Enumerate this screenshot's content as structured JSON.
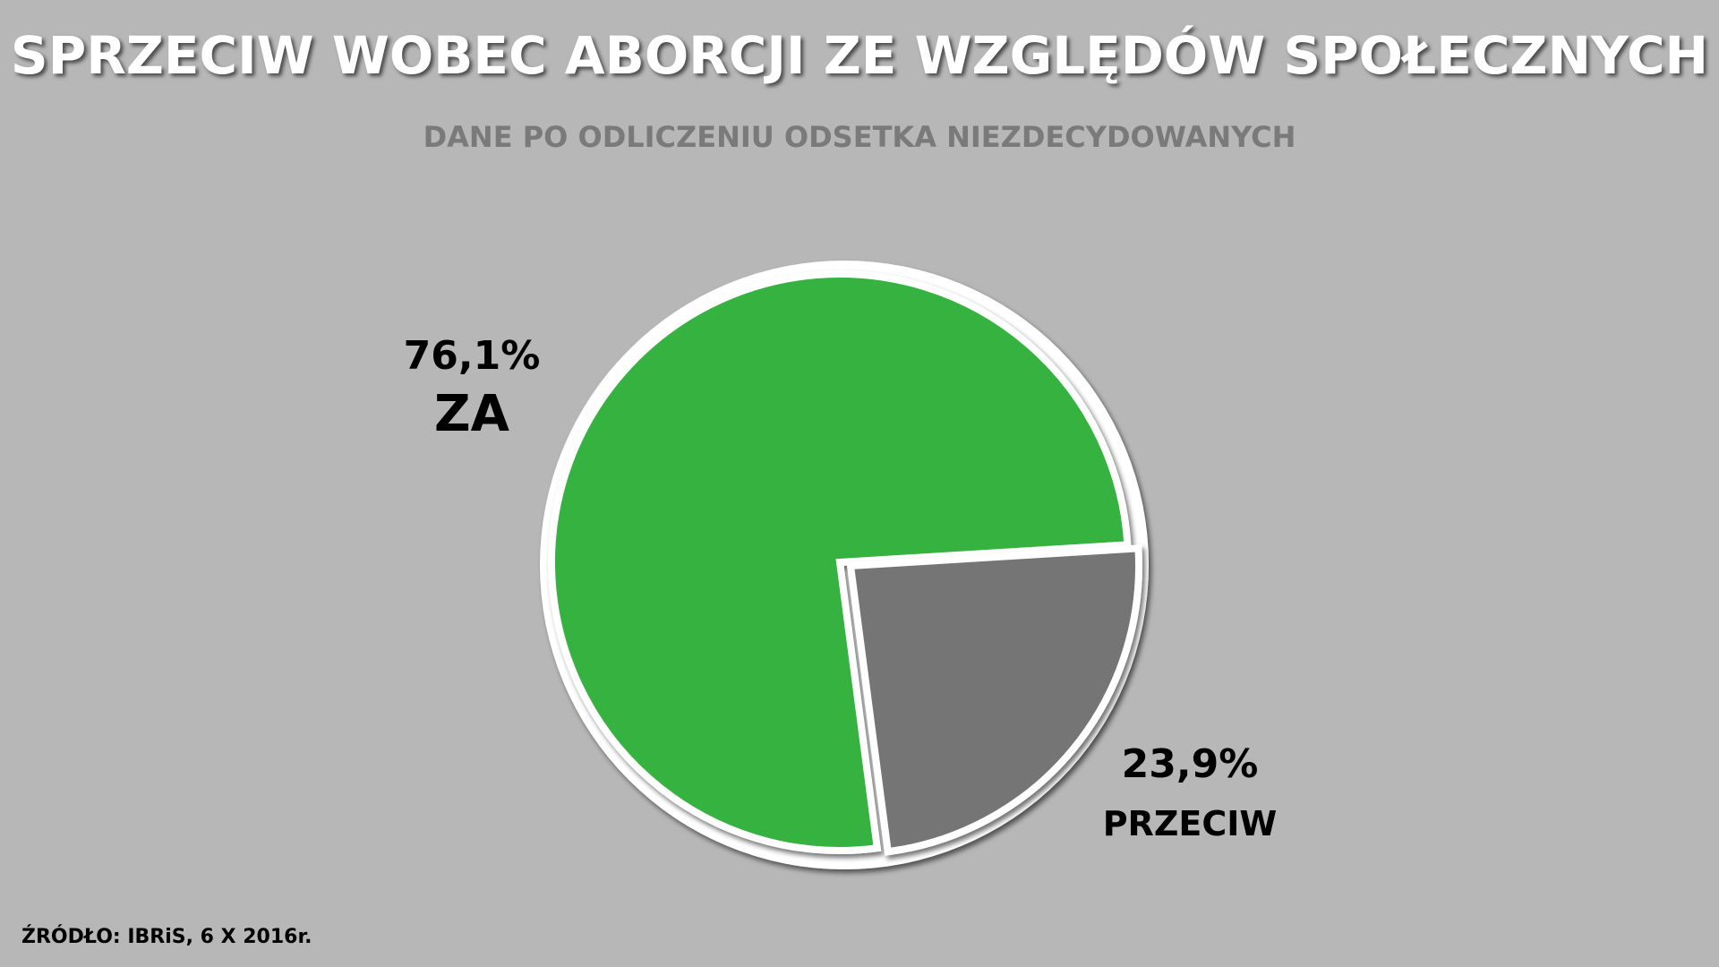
{
  "chart_data": {
    "type": "pie",
    "title": "SPRZECIW WOBEC ABORCJI ZE WZGLĘDÓW SPOŁECZNYCH",
    "subtitle": "DANE PO ODLICZENIU ODSETKA NIEZDECYDOWANYCH",
    "slices": [
      {
        "name": "ZA",
        "value": 76.1,
        "value_label": "76,1%",
        "color": "#36b23f"
      },
      {
        "name": "PRZECIW",
        "value": 23.9,
        "value_label": "23,9%",
        "color": "#747474"
      }
    ],
    "source": "ŹRÓDŁO: IBRiS, 6 X 2016r."
  }
}
